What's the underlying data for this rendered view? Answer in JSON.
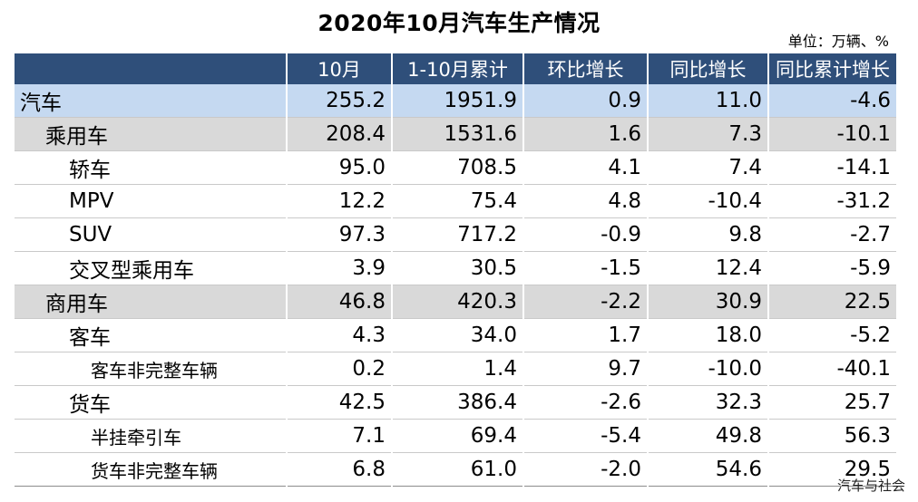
{
  "title": "2020年10月汽车生产情况",
  "unit": "单位：万辆、%",
  "headers": [
    "",
    "10月",
    "1-10月累计",
    "环比增长",
    "同比增长",
    "同比累计增长"
  ],
  "rows": [
    {
      "name": "汽车",
      "v": [
        "255.2",
        "1951.9",
        "0.9",
        "11.0",
        "-4.6"
      ]
    },
    {
      "name": "乘用车",
      "v": [
        "208.4",
        "1531.6",
        "1.6",
        "7.3",
        "-10.1"
      ]
    },
    {
      "name": "轿车",
      "v": [
        "95.0",
        "708.5",
        "4.1",
        "7.4",
        "-14.1"
      ]
    },
    {
      "name": "MPV",
      "v": [
        "12.2",
        "75.4",
        "4.8",
        "-10.4",
        "-31.2"
      ]
    },
    {
      "name": "SUV",
      "v": [
        "97.3",
        "717.2",
        "-0.9",
        "9.8",
        "-2.7"
      ]
    },
    {
      "name": "交叉型乘用车",
      "v": [
        "3.9",
        "30.5",
        "-1.5",
        "12.4",
        "-5.9"
      ]
    },
    {
      "name": "商用车",
      "v": [
        "46.8",
        "420.3",
        "-2.2",
        "30.9",
        "22.5"
      ]
    },
    {
      "name": "客车",
      "v": [
        "4.3",
        "34.0",
        "1.7",
        "18.0",
        "-5.2"
      ]
    },
    {
      "name": "客车非完整车辆",
      "v": [
        "0.2",
        "1.4",
        "9.7",
        "-10.0",
        "-40.1"
      ]
    },
    {
      "name": "货车",
      "v": [
        "42.5",
        "386.4",
        "-2.6",
        "32.3",
        "25.7"
      ]
    },
    {
      "name": "半挂牵引车",
      "v": [
        "7.1",
        "69.4",
        "-5.4",
        "49.8",
        "56.3"
      ]
    },
    {
      "name": "货车非完整车辆",
      "v": [
        "6.8",
        "61.0",
        "-2.0",
        "54.6",
        "29.5"
      ]
    }
  ],
  "watermark": "汽车与社会",
  "colors": {
    "header_bg": "#2f4f7a",
    "total_row": "#c5d9f1",
    "category_row": "#d9d9d9"
  }
}
